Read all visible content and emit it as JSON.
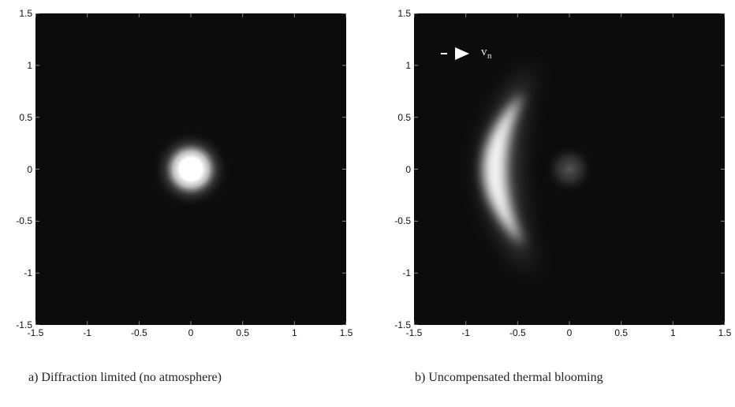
{
  "chart_data": [
    {
      "type": "heatmap",
      "xlim": [
        -1.5,
        1.5
      ],
      "ylim": [
        -1.5,
        1.5
      ],
      "x_ticks": [
        "-1.5",
        "-1",
        "-0.5",
        "0",
        "0.5",
        "1",
        "1.5"
      ],
      "y_ticks": [
        "1.5",
        "1",
        "0.5",
        "0",
        "-0.5",
        "-1",
        "-1.5"
      ],
      "features": [
        {
          "shape": "spot",
          "center": [
            0,
            0
          ],
          "radius": 0.12,
          "peak": 1.0
        }
      ],
      "caption": "a) Diffraction limited  (no atmosphere)"
    },
    {
      "type": "heatmap",
      "xlim": [
        -1.5,
        1.5
      ],
      "ylim": [
        -1.5,
        1.5
      ],
      "x_ticks": [
        "-1.5",
        "-1",
        "-0.5",
        "0",
        "0.5",
        "1",
        "1.5"
      ],
      "y_ticks": [
        "1.5",
        "1",
        "0.5",
        "0",
        "-0.5",
        "-1",
        "-1.5"
      ],
      "features": [
        {
          "shape": "crescent",
          "center": [
            0,
            0
          ],
          "apex": [
            -0.8,
            0
          ],
          "tips": [
            [
              -0.35,
              1.0
            ],
            [
              -0.35,
              -1.0
            ]
          ],
          "peak": 1.0
        },
        {
          "shape": "spot",
          "center": [
            0,
            0
          ],
          "radius": 0.12,
          "peak": 0.3
        }
      ],
      "annotation": {
        "text": "v",
        "subscript": "n",
        "arrow": "right"
      },
      "caption": "b) Uncompensated thermal blooming"
    }
  ]
}
